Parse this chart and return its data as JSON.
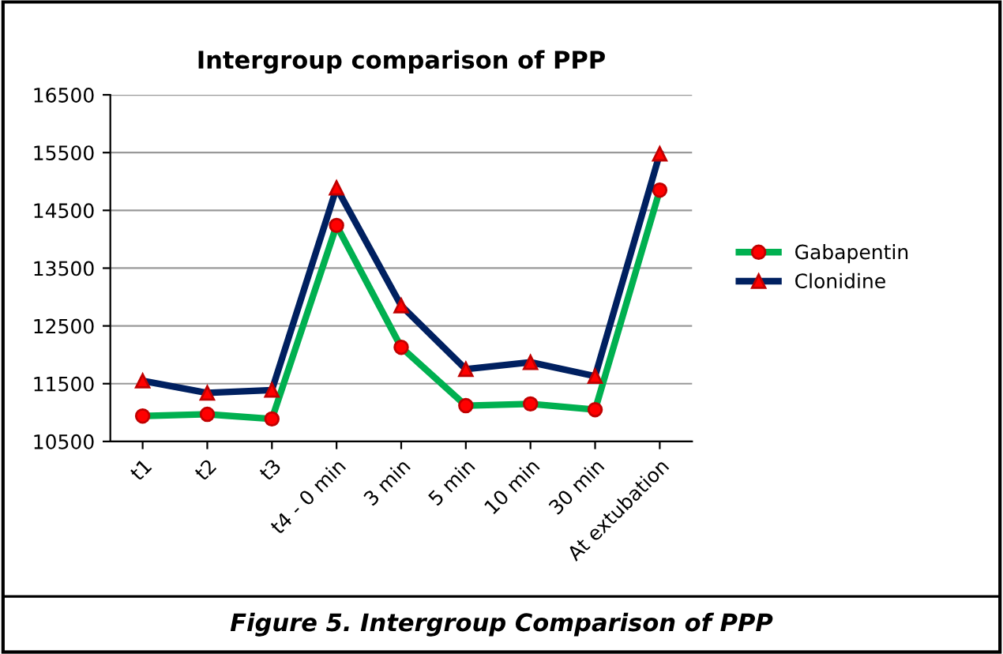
{
  "chart_data": {
    "type": "line",
    "title": "Intergroup comparison of PPP",
    "categories": [
      "t1",
      "t2",
      "t3",
      "t4 - 0 min",
      "3 min",
      "5 min",
      "10 min",
      "30 min",
      "At extubation"
    ],
    "series": [
      {
        "name": "Gabapentin",
        "color": "#00b050",
        "marker": "circle",
        "values": [
          10940,
          10970,
          10890,
          14240,
          12130,
          11120,
          11150,
          11050,
          14850
        ]
      },
      {
        "name": "Clonidine",
        "color": "#002060",
        "marker": "triangle",
        "values": [
          11550,
          11340,
          11390,
          14890,
          12850,
          11750,
          11870,
          11630,
          15480
        ]
      }
    ],
    "ylim": [
      10500,
      16500
    ],
    "yticks": [
      10500,
      11500,
      12500,
      13500,
      14500,
      15500,
      16500
    ],
    "grid": "y",
    "legend": "right",
    "line_style": "solid",
    "annotations": [
      "Figure 5. Intergroup Comparison of PPP"
    ]
  }
}
